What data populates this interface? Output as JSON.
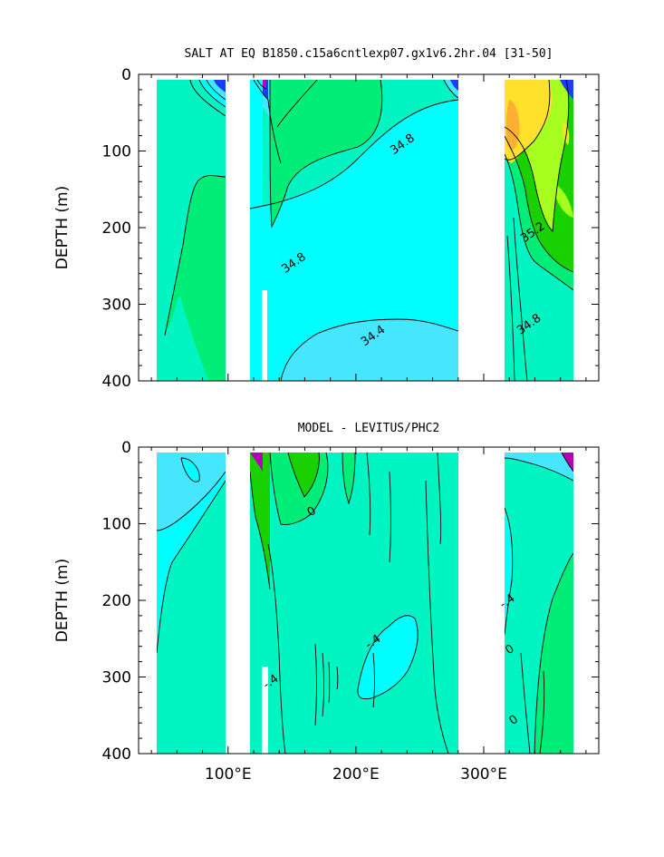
{
  "chart_data": [
    {
      "type": "heatmap",
      "title": "SALT AT EQ B1850.c15a6cntlexp07.gx1v6.2hr.04 [31-50]",
      "ylabel": "DEPTH (m)",
      "ylim": [
        400,
        0
      ],
      "xlim": [
        30,
        390
      ],
      "y_ticks": [
        "0",
        "100",
        "200",
        "300",
        "400"
      ],
      "y_tick_values": [
        0,
        100,
        200,
        300,
        400
      ],
      "contour_labels": [
        {
          "text": "34.8",
          "x": 238,
          "y": 95
        },
        {
          "text": "34.8",
          "x": 153,
          "y": 250
        },
        {
          "text": "35.2",
          "x": 340,
          "y": 210
        },
        {
          "text": "34.4",
          "x": 215,
          "y": 345
        },
        {
          "text": "34.8",
          "x": 337,
          "y": 330
        }
      ],
      "colors": {
        "blue": "#1a3cff",
        "light_blue": "#46e6ff",
        "cyan": "#00ffff",
        "aquamarine": "#00f5c3",
        "green": "#00ee77",
        "bright_green": "#19d000",
        "lime": "#a6ff1e",
        "yellow": "#ffe12c",
        "orange": "#ffb032",
        "magenta": "#b400b4",
        "pink": "#e86aff"
      }
    },
    {
      "type": "heatmap",
      "title": "MODEL - LEVITUS/PHC2",
      "ylabel": "DEPTH (m)",
      "ylim": [
        400,
        0
      ],
      "xlim": [
        30,
        390
      ],
      "y_ticks": [
        "0",
        "100",
        "200",
        "300",
        "400"
      ],
      "y_tick_values": [
        0,
        100,
        200,
        300,
        400
      ],
      "x_ticks": [
        "100°E",
        "200°E",
        "300°E"
      ],
      "x_tick_values": [
        100,
        200,
        300
      ],
      "contour_labels": [
        {
          "text": "0",
          "x": 167,
          "y": 88
        },
        {
          "text": "-.4",
          "x": 215,
          "y": 258
        },
        {
          "text": "-.4",
          "x": 135,
          "y": 310
        },
        {
          "text": "-.4",
          "x": 320,
          "y": 205
        },
        {
          "text": "0",
          "x": 322,
          "y": 268
        },
        {
          "text": "0",
          "x": 325,
          "y": 360
        }
      ],
      "colors": {
        "aquamarine": "#00f5c3",
        "cyan": "#00ffff",
        "light_blue": "#46e6ff",
        "green": "#00ee77",
        "bright_green": "#19d000",
        "magenta": "#b400b4"
      }
    }
  ]
}
